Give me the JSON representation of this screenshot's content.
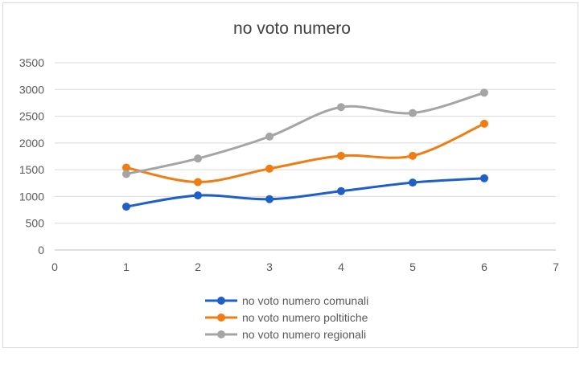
{
  "chart_data": {
    "type": "line",
    "title": "no voto numero",
    "x": [
      1,
      2,
      3,
      4,
      5,
      6
    ],
    "xlim": [
      0,
      7
    ],
    "ylim": [
      0,
      3500
    ],
    "x_ticks": [
      0,
      1,
      2,
      3,
      4,
      5,
      6,
      7
    ],
    "y_ticks": [
      0,
      500,
      1000,
      1500,
      2000,
      2500,
      3000,
      3500
    ],
    "grid": "horizontal",
    "legend_position": "bottom",
    "smooth": true,
    "series": [
      {
        "name": "no voto numero comunali",
        "color": "#1f5fc8",
        "values": [
          810,
          1020,
          950,
          1100,
          1260,
          1340
        ]
      },
      {
        "name": "no voto numero poltitiche",
        "color": "#f07c14",
        "values": [
          1540,
          1270,
          1520,
          1760,
          1760,
          2360
        ]
      },
      {
        "name": "no voto numero regionali",
        "color": "#a5a5a5",
        "values": [
          1420,
          1710,
          2120,
          2670,
          2560,
          2940
        ]
      }
    ]
  }
}
